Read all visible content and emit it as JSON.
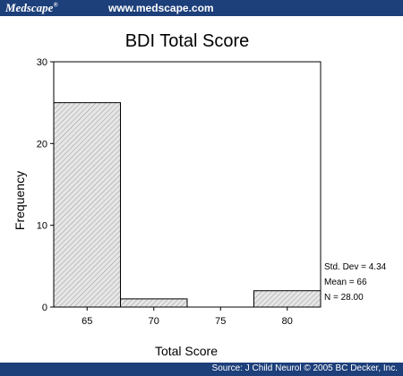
{
  "header": {
    "brand": "Medscape",
    "brand_mark": "®",
    "site": "www.medscape.com"
  },
  "footer": {
    "source": "Source: J Child Neurol © 2005 BC Decker, Inc."
  },
  "colors": {
    "banner": "#1d3f7a",
    "bar_fill": "#e6e6e6",
    "bar_hatch": "#9a9a9a"
  },
  "chart_data": {
    "type": "bar",
    "title": "BDI Total Score",
    "xlabel": "Total Score",
    "ylabel": "Frequency",
    "ylim": [
      0,
      30
    ],
    "xlim": [
      62.5,
      82.5
    ],
    "x_ticks": [
      65,
      70,
      75,
      80
    ],
    "y_ticks": [
      0,
      10,
      20,
      30
    ],
    "bin_width": 5,
    "bins": [
      {
        "center": 65,
        "value": 25
      },
      {
        "center": 70,
        "value": 1
      },
      {
        "center": 75,
        "value": 0
      },
      {
        "center": 80,
        "value": 2
      }
    ],
    "stats": [
      "Std. Dev = 4.34",
      "Mean = 66",
      "N = 28.00"
    ],
    "grid": false
  }
}
